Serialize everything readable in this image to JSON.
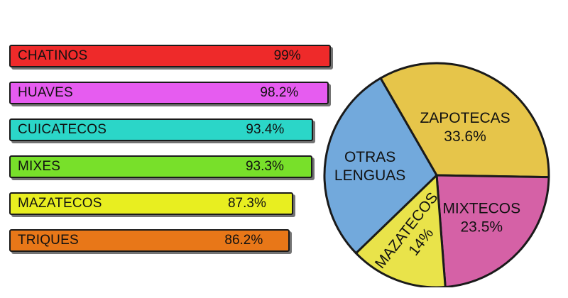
{
  "chart_data": [
    {
      "type": "bar",
      "orientation": "horizontal",
      "categories": [
        "CHATINOS",
        "HUAVES",
        "CUICATECOS",
        "MIXES",
        "MAZATECOS",
        "TRIQUES"
      ],
      "values": [
        99,
        98.2,
        93.4,
        93.3,
        87.3,
        86.2
      ],
      "value_labels": [
        "99%",
        "98.2%",
        "93.4%",
        "93.3%",
        "87.3%",
        "86.2%"
      ],
      "colors": [
        "#ee2a2a",
        "#e65cf0",
        "#2bd6c8",
        "#78e02a",
        "#e8ee20",
        "#e87718"
      ]
    },
    {
      "type": "pie",
      "slices": [
        {
          "label": "ZAPOTECAS",
          "value": 33.6,
          "value_label": "33.6%",
          "color": "#e6c54a"
        },
        {
          "label": "MIXTECOS",
          "value": 23.5,
          "value_label": "23.5%",
          "color": "#d561a6"
        },
        {
          "label": "MAZATECOS",
          "value": 14,
          "value_label": "14%",
          "color": "#e9e34a"
        },
        {
          "label": "OTRAS LENGUAS",
          "label_lines": [
            "OTRAS",
            "LENGUAS"
          ],
          "value": 28.9,
          "color": "#72a9dc"
        }
      ]
    }
  ]
}
